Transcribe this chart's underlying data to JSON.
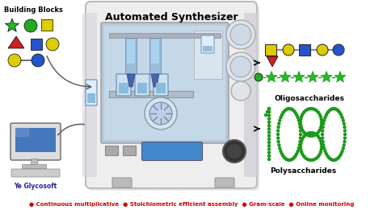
{
  "title": "Automated Synthesizer",
  "bg_color": "#ffffff",
  "bottom_text": "● Continuous multiplicative  ● Stoichiometric efficient assembly  ● Gram-scale  ● Online monitoring",
  "bottom_text_color": "#cc0000",
  "building_blocks_label": "Building Blocks",
  "ye_glycosoft_label": "Ye Glycosoft",
  "oligosaccharides_label": "Oligosaccharides",
  "polysaccharides_label": "Polysaccharides",
  "machine_body_color": "#eeeeee",
  "machine_border_color": "#bbbbbb",
  "window_bg_color": "#c5d8e8",
  "window_inner_color": "#ddeeff",
  "green_star_color": "#22bb22",
  "red_tri_color": "#cc2222",
  "yellow_sq_color": "#ddcc00",
  "blue_sq_color": "#2255cc",
  "yellow_circle_color": "#ddcc00",
  "blue_circle_color": "#2255cc",
  "green_circle_color": "#22aa22",
  "dark_green_color": "#1a9a1a",
  "arm_color": "#8ab0cc",
  "bottle_color": "#aaccee",
  "side_panel_color": "#d8d8e0"
}
